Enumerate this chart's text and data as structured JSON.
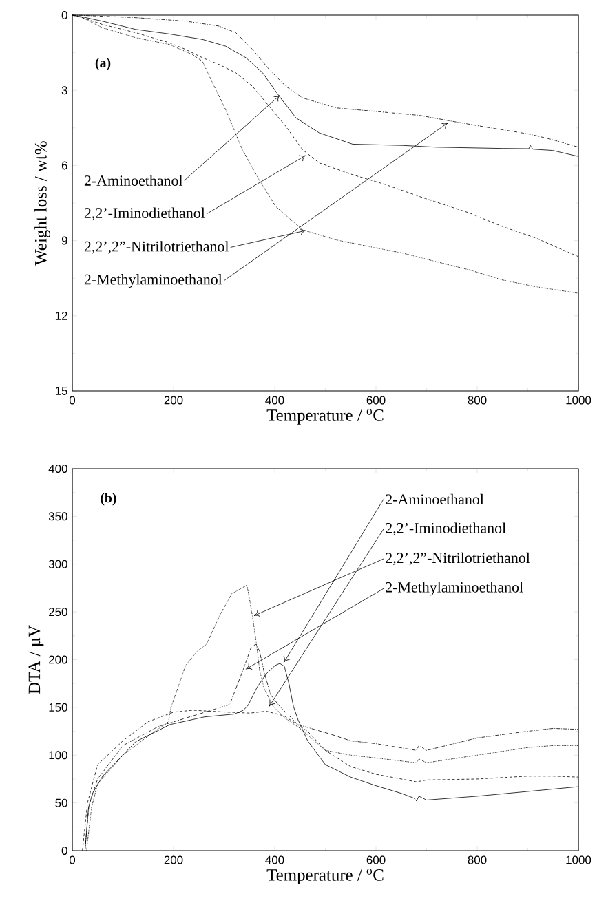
{
  "chart_data": [
    {
      "type": "line",
      "xlabel": "Temperature / $^{o}$C",
      "ylabel": "Weight loss / wt%",
      "xlim": [
        0,
        1000
      ],
      "ylim": [
        15,
        0
      ],
      "xticks": [
        0,
        200,
        400,
        600,
        800,
        1000
      ],
      "yticks": [
        0,
        3,
        6,
        9,
        12,
        15
      ],
      "grid": false,
      "marker": "none",
      "annotations": [
        "(a)",
        {
          "text": "2-Aminoethanol",
          "x": 410,
          "y": 3.2
        },
        {
          "text": "2,2’-Iminodiethanol",
          "x": 461,
          "y": 5.6
        },
        {
          "text": "2,2’,2”-Nitrilotriethanol",
          "x": 461,
          "y": 8.6
        },
        {
          "text": "2-Methylaminoethanol",
          "x": 742,
          "y": 4.3
        }
      ],
      "series": [
        {
          "color": "#000000",
          "line_style": "solid",
          "x": [
            0,
            20,
            59,
            125,
            191,
            257,
            303,
            343,
            376,
            409,
            442,
            488,
            554,
            653,
            719,
            850,
            902,
            905,
            910,
            949,
            1000
          ],
          "values": [
            0,
            0.07,
            0.24,
            0.57,
            0.75,
            0.97,
            1.24,
            1.7,
            2.3,
            3.24,
            4.1,
            4.7,
            5.15,
            5.2,
            5.27,
            5.32,
            5.33,
            5.2,
            5.35,
            5.4,
            5.64
          ]
        },
        {
          "color": "#000000",
          "line_style": "dashed",
          "x": [
            0,
            20,
            59,
            125,
            191,
            224,
            257,
            290,
            323,
            356,
            389,
            422,
            455,
            488,
            554,
            620,
            686,
            785,
            850,
            916,
            1000
          ],
          "values": [
            0,
            0.1,
            0.37,
            0.7,
            1.1,
            1.37,
            1.7,
            1.97,
            2.3,
            2.84,
            3.64,
            4.44,
            5.37,
            5.9,
            6.37,
            6.77,
            7.24,
            7.9,
            8.44,
            8.9,
            9.64
          ]
        },
        {
          "color": "#000000",
          "line_style": "dotted",
          "x": [
            0,
            20,
            59,
            125,
            191,
            237,
            257,
            277,
            303,
            336,
            369,
            402,
            455,
            521,
            587,
            653,
            719,
            785,
            850,
            916,
            1000
          ],
          "values": [
            0,
            0.1,
            0.5,
            0.9,
            1.17,
            1.57,
            1.84,
            2.7,
            3.77,
            5.37,
            6.57,
            7.64,
            8.57,
            8.97,
            9.24,
            9.5,
            9.84,
            10.17,
            10.57,
            10.84,
            11.1
          ]
        },
        {
          "color": "#000000",
          "line_style": "dashdot",
          "x": [
            0,
            20,
            125,
            224,
            290,
            323,
            356,
            389,
            422,
            455,
            521,
            620,
            686,
            752,
            818,
            904,
            949,
            1000
          ],
          "values": [
            0,
            0.01,
            0.1,
            0.24,
            0.44,
            0.7,
            1.37,
            2.17,
            2.84,
            3.3,
            3.7,
            3.88,
            4.0,
            4.24,
            4.47,
            4.75,
            4.97,
            5.27
          ]
        }
      ]
    },
    {
      "type": "line",
      "xlabel": "Temperature / $^{o}$C",
      "ylabel": "DTA / µV",
      "xlim": [
        0,
        1000
      ],
      "ylim": [
        0,
        400
      ],
      "xticks": [
        0,
        200,
        400,
        600,
        800,
        1000
      ],
      "yticks": [
        0,
        50,
        100,
        150,
        200,
        250,
        300,
        350,
        400
      ],
      "grid": false,
      "marker": "none",
      "annotations": [
        "(b)",
        {
          "text": "2-Aminoethanol",
          "x": 418,
          "y": 197
        },
        {
          "text": "2,2’-Iminodiethanol",
          "x": 389,
          "y": 151
        },
        {
          "text": "2,2’,2”-Nitrilotriethanol",
          "x": 359,
          "y": 246
        },
        {
          "text": "2-Methylaminoethanol",
          "x": 343,
          "y": 190
        }
      ],
      "series": [
        {
          "color": "#000000",
          "line_style": "solid",
          "x": [
            25,
            32,
            40,
            60,
            100,
            125,
            193,
            261,
            320,
            338,
            347,
            365,
            383,
            401,
            410,
            419,
            428,
            437,
            446,
            465,
            500,
            550,
            600,
            650,
            675,
            680,
            685,
            700,
            800,
            900,
            1000
          ],
          "values": [
            0,
            45,
            60,
            78,
            100,
            114,
            132,
            140,
            143,
            147,
            152,
            171,
            185,
            194,
            196,
            193,
            175,
            151,
            137,
            115,
            90,
            77,
            68,
            60,
            55,
            52,
            57,
            53,
            57,
            62,
            67
          ]
        },
        {
          "color": "#000000",
          "line_style": "dashed",
          "x": [
            20,
            30,
            50,
            100,
            150,
            200,
            238,
            306,
            351,
            383,
            419,
            465,
            500,
            550,
            600,
            680,
            700,
            800,
            900,
            950,
            1000
          ],
          "values": [
            0,
            50,
            90,
            115,
            135,
            145,
            147,
            145,
            144,
            146,
            141,
            125,
            105,
            88,
            80,
            72,
            74,
            75,
            78,
            78,
            77
          ]
        },
        {
          "color": "#000000",
          "line_style": "dotted",
          "x": [
            28,
            38,
            50,
            100,
            150,
            190,
            195,
            224,
            247,
            265,
            292,
            315,
            345,
            350,
            357,
            364,
            370,
            379,
            397,
            420,
            450,
            500,
            550,
            600,
            680,
            685,
            700,
            800,
            900,
            950,
            1000
          ],
          "values": [
            0,
            45,
            70,
            100,
            120,
            135,
            150,
            194,
            209,
            216,
            247,
            269,
            278,
            264,
            242,
            216,
            189,
            170,
            151,
            139,
            128,
            105,
            100,
            97,
            92,
            96,
            92,
            100,
            108,
            110,
            110
          ]
        },
        {
          "color": "#000000",
          "line_style": "dashdot",
          "x": [
            25,
            33,
            50,
            100,
            170,
            238,
            311,
            338,
            354,
            363,
            370,
            379,
            392,
            410,
            446,
            510,
            550,
            600,
            680,
            685,
            700,
            800,
            900,
            950,
            1000
          ],
          "values": [
            0,
            48,
            75,
            110,
            130,
            141,
            153,
            190,
            214,
            216,
            209,
            187,
            163,
            151,
            132,
            122,
            115,
            112,
            105,
            110,
            105,
            118,
            125,
            128,
            127
          ]
        }
      ]
    }
  ]
}
